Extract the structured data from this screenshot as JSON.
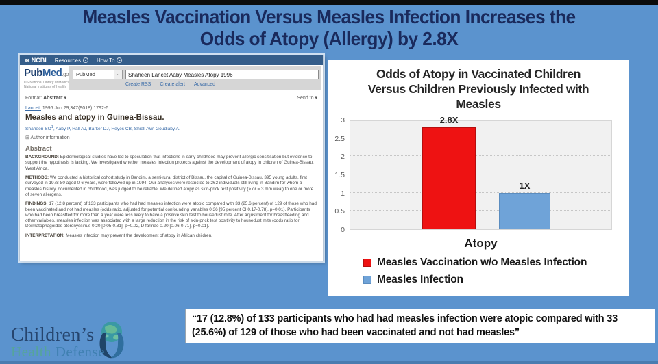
{
  "slide": {
    "title_line1": "Measles Vaccination Versus Measles Infection Increases the",
    "title_line2": "Odds of Atopy (Allergy) by 2.8X"
  },
  "colors": {
    "background_blue": "#5b93ce",
    "title_navy": "#1a2a5c",
    "bar_red": "#ee1212",
    "bar_blue": "#6fa3d8",
    "ncbi_bar_blue": "#345d8a",
    "link_blue": "#3a6ca8"
  },
  "icons": {
    "ncbi_wave": "≋",
    "chevron_down": "⌄",
    "dropdown_arrow": "▾",
    "expand_plus": "⊞"
  },
  "pubmed": {
    "ncbi_label": "NCBI",
    "resources_label": "Resources",
    "howto_label": "How To",
    "logo_pub": "Pub",
    "logo_med": "Med",
    "logo_gov": ".gov",
    "nlm_line1": "US National Library of Medicine",
    "nlm_line2": "National Institutes of Health",
    "search_dropdown_value": "PubMed",
    "search_value": "Shaheen Lancet Aaby Measles Atopy 1996",
    "links": [
      "Create RSS",
      "Create alert",
      "Advanced"
    ],
    "format_label": "Format:",
    "format_value": "Abstract",
    "send_to_label": "Send to",
    "citation_journal": "Lancet.",
    "citation_rest": "1996 Jun 29;347(9018):1792-6.",
    "article_title": "Measles and atopy in Guinea-Bissau.",
    "authors_first": "Shaheen SO",
    "authors_sup": "1",
    "authors_rest": ", Aaby P, Hall AJ, Barker DJ, Heyes CB, Shiell AW, Goudiaby A.",
    "author_info": "Author information",
    "abstract_heading": "Abstract",
    "background_label": "BACKGROUND:",
    "background_text": "Epidemiological studies have led to speculation that infections in early childhood may prevent allergic sensitisation but evidence to support the hypothesis is lacking. We investigated whether measles infection protects against the development of atopy in children of Guinea-Bissau, West Africa.",
    "methods_label": "METHODS:",
    "methods_text": "We conducted a historical cohort study in Bandim, a semi-rural district of Bissau, the capital of Guinea-Bissau. 395 young adults, first surveyed in 1978-80 aged 0-6 years, were followed up in 1994. Our analyses were restricted to 262 individuals still living in Bandim for whom a measles history, documented in childhood, was judged to be reliable. We defined atopy as skin-prick test positivity (> or = 3 mm weal) to one or more of seven allergens.",
    "findings_label": "FINDINGS:",
    "findings_text": "17 (12.8 percent) of 133 participants who had had measles infection were atopic compared with 33 (25.6 percent) of 129 of those who had been vaccinated and not had measles (odds ratio, adjusted for potential confounding variables 0.36 [95 percent CI 0.17-0.78], p=0.01). Participants who had been breastfed for more than a year were less likely to have a positive skin test to housedust mite. After adjustment for breastfeeding and other variables, measles infection was associated with a large reduction in the risk of skin-prick test positivity to housedust mite (odds ratio for Dermatophagoides pteronyssinus 0.20 [0.05-0.81], p=0.02, D farinae 0.20 [0.06-0.71], p=0.01).",
    "interpretation_label": "INTERPRETATION:",
    "interpretation_text": "Measles infection may prevent the development of atopy in African children."
  },
  "chart_data": {
    "type": "bar",
    "title": "Odds of Atopy in Vaccinated Children Versus Children Previously Infected with Measles",
    "categories": [
      "Atopy"
    ],
    "series": [
      {
        "name": "Measles Vaccination w/o Measles Infection",
        "values": [
          2.8
        ],
        "data_label": "2.8X",
        "color": "#ee1212",
        "border_color": "#b60e0e"
      },
      {
        "name": "Measles Infection",
        "values": [
          1
        ],
        "data_label": "1X",
        "color": "#6fa3d8",
        "border_color": "#5b8dc0"
      }
    ],
    "xlabel": "Atopy",
    "ylabel": "",
    "ylim": [
      0,
      3
    ],
    "yticks": [
      0,
      0.5,
      1,
      1.5,
      2,
      2.5,
      3
    ],
    "grid": true,
    "legend_position": "bottom-left"
  },
  "quote": {
    "text": "“17 (12.8%) of 133 participants who had had measles infection were atopic compared with 33 (25.6%) of 129 of those who had been vaccinated and not had measles”"
  },
  "logo": {
    "childrens": "Children’s",
    "health": "Health",
    "defense": "Defense"
  }
}
